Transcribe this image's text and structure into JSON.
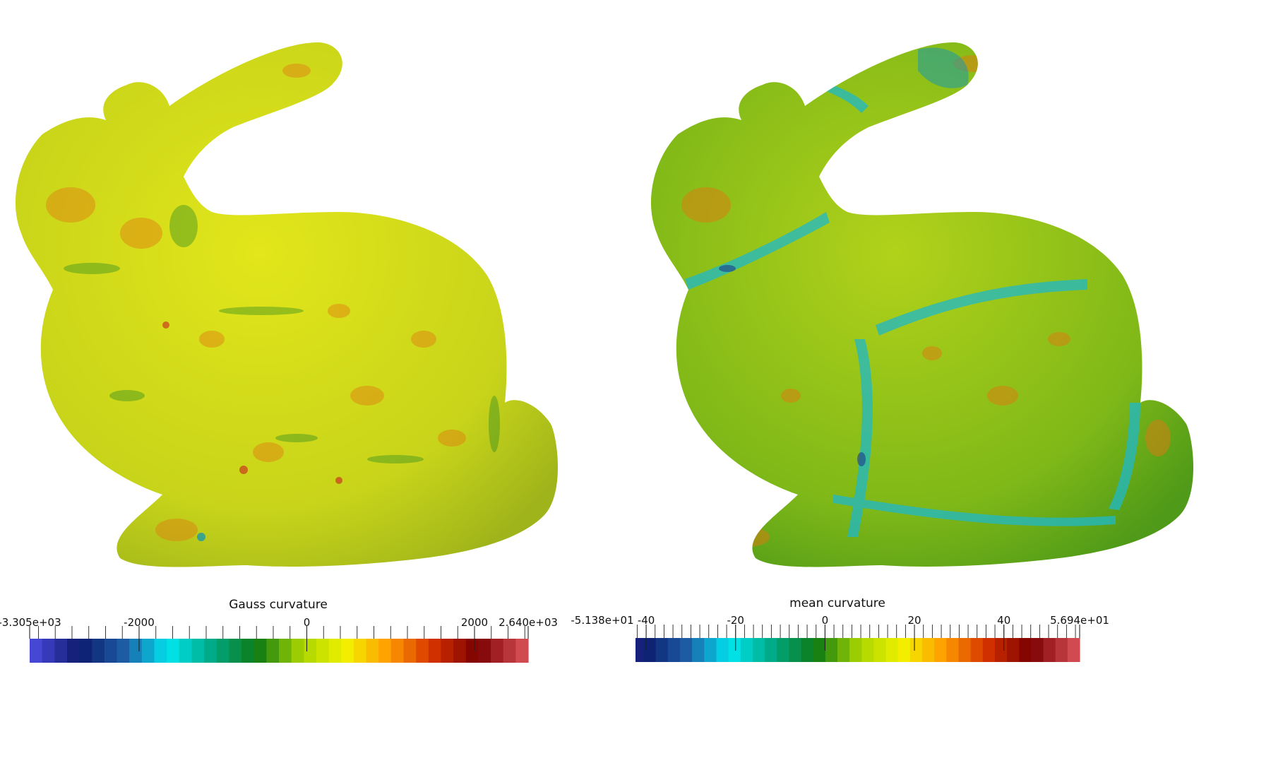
{
  "colormap": [
    "#4747d6",
    "#0c1a6b",
    "#1d5ea6",
    "#00e6f0",
    "#00a884",
    "#0c7a14",
    "#a8d400",
    "#f2f200",
    "#ff9a00",
    "#d23000",
    "#7a0000",
    "#d14a50"
  ],
  "panels": [
    {
      "id": "gauss",
      "title": "Gauss curvature",
      "min_label": "-3.305e+03",
      "max_label": "2.640e+03",
      "min": -3305,
      "max": 2640,
      "major_ticks": [
        {
          "value": -2000,
          "label": "-2000"
        },
        {
          "value": 0,
          "label": "0"
        },
        {
          "value": 2000,
          "label": "2000"
        }
      ],
      "minor_step": 200
    },
    {
      "id": "mean",
      "title": "mean curvature",
      "min_label": "-5.138e+01",
      "max_label": "5.694e+01",
      "min": -51.38,
      "max": 56.94,
      "major_ticks": [
        {
          "value": -40,
          "label": "-40"
        },
        {
          "value": -20,
          "label": "-20"
        },
        {
          "value": 0,
          "label": "0"
        },
        {
          "value": 20,
          "label": "20"
        },
        {
          "value": 40,
          "label": "40"
        }
      ],
      "minor_step": 2
    }
  ]
}
